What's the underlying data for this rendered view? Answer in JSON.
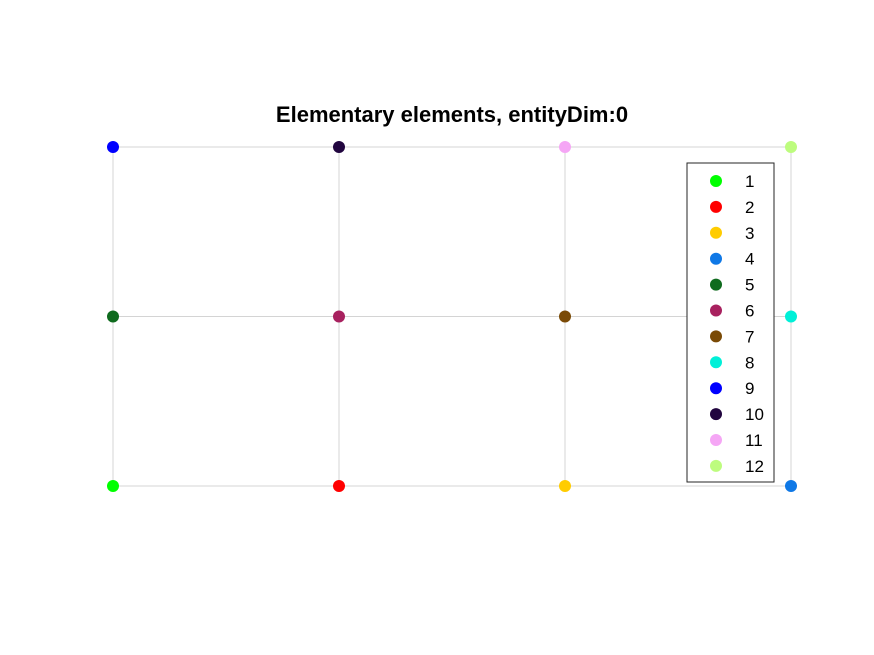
{
  "chart_data": {
    "type": "scatter",
    "title": "Elementary elements, entityDim:0",
    "xlabel": "",
    "ylabel": "",
    "xlim": [
      0,
      3
    ],
    "ylim": [
      0,
      2
    ],
    "grid": true,
    "axes_visible": false,
    "legend_placement": "top-right",
    "edges": [
      [
        [
          0,
          0
        ],
        [
          3,
          0
        ]
      ],
      [
        [
          0,
          1
        ],
        [
          3,
          1
        ]
      ],
      [
        [
          0,
          2
        ],
        [
          3,
          2
        ]
      ],
      [
        [
          0,
          0
        ],
        [
          0,
          2
        ]
      ],
      [
        [
          1,
          0
        ],
        [
          1,
          2
        ]
      ],
      [
        [
          2,
          0
        ],
        [
          2,
          2
        ]
      ],
      [
        [
          3,
          0
        ],
        [
          3,
          2
        ]
      ]
    ],
    "series": [
      {
        "name": "1",
        "color": "#00ff00",
        "points": [
          [
            0,
            0
          ]
        ]
      },
      {
        "name": "2",
        "color": "#ff0000",
        "points": [
          [
            1,
            0
          ]
        ]
      },
      {
        "name": "3",
        "color": "#ffcc00",
        "points": [
          [
            2,
            0
          ]
        ]
      },
      {
        "name": "4",
        "color": "#0f78e6",
        "points": [
          [
            3,
            0
          ]
        ]
      },
      {
        "name": "5",
        "color": "#0f6b1e",
        "points": [
          [
            0,
            1
          ]
        ]
      },
      {
        "name": "6",
        "color": "#a8215f",
        "points": [
          [
            1,
            1
          ]
        ]
      },
      {
        "name": "7",
        "color": "#7a4a06",
        "points": [
          [
            2,
            1
          ]
        ]
      },
      {
        "name": "8",
        "color": "#00f0d8",
        "points": [
          [
            3,
            1
          ]
        ]
      },
      {
        "name": "9",
        "color": "#0000ff",
        "points": [
          [
            0,
            2
          ]
        ]
      },
      {
        "name": "10",
        "color": "#21053f",
        "points": [
          [
            1,
            2
          ]
        ]
      },
      {
        "name": "11",
        "color": "#f5a6f5",
        "points": [
          [
            2,
            2
          ]
        ]
      },
      {
        "name": "12",
        "color": "#bdfc7e",
        "points": [
          [
            3,
            2
          ]
        ]
      }
    ]
  }
}
